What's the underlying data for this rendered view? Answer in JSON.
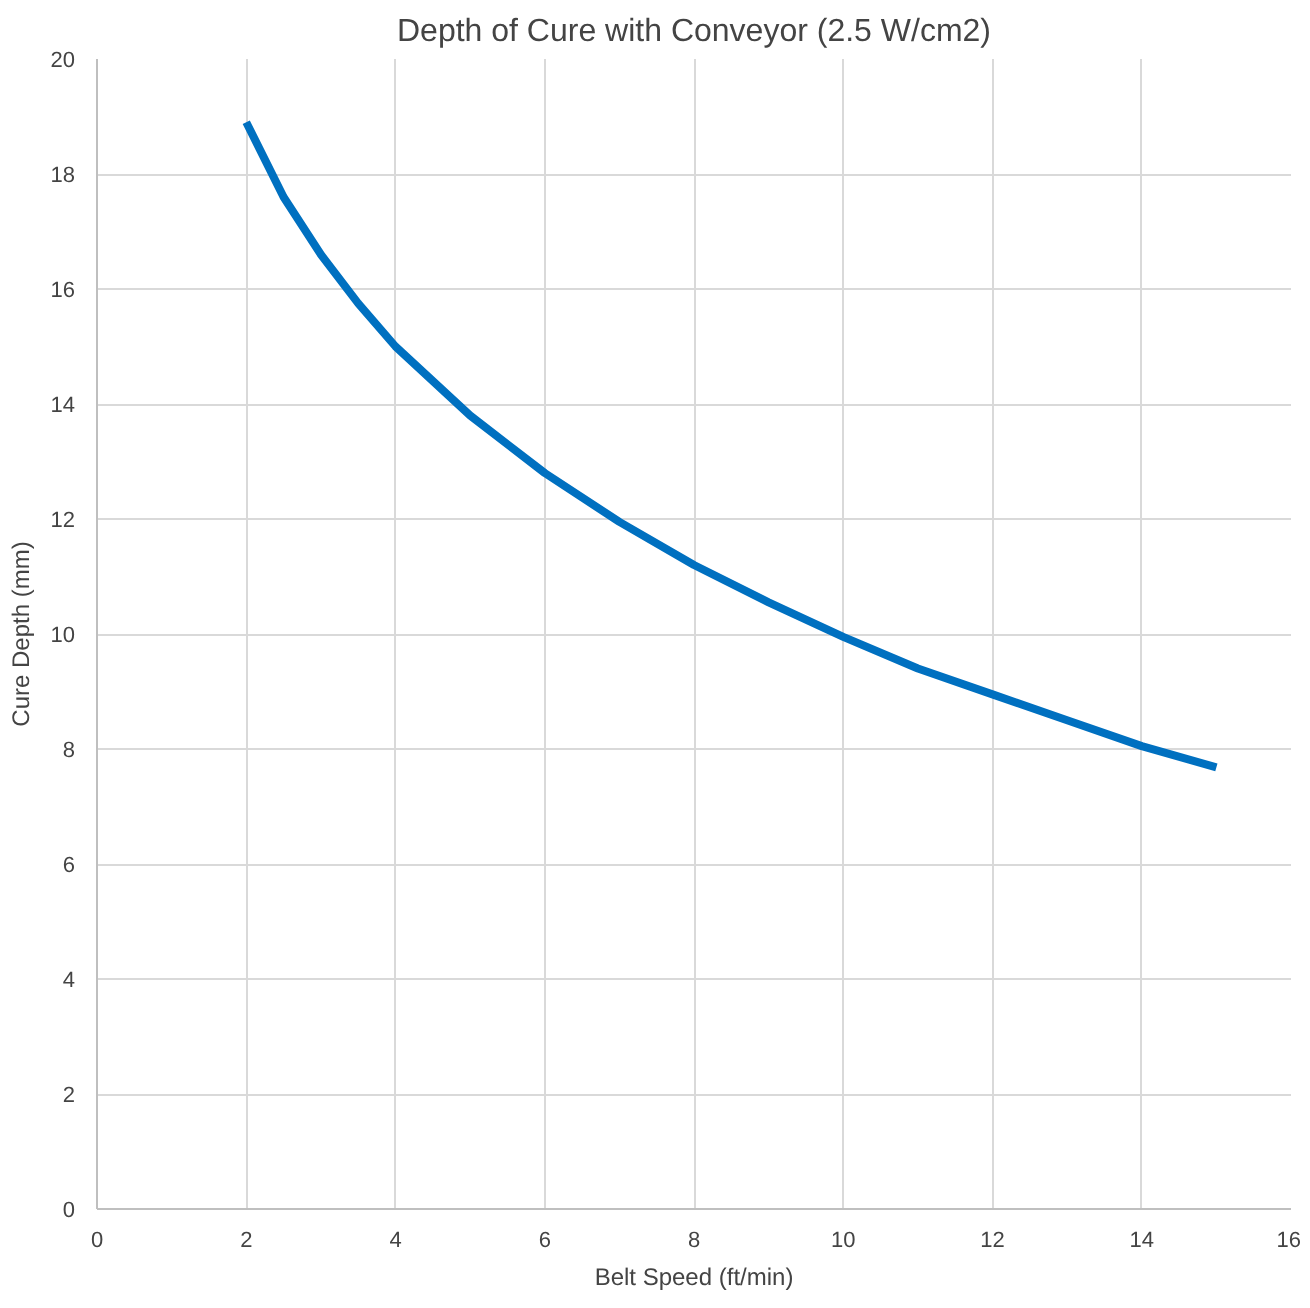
{
  "chart_data": {
    "type": "line",
    "title": "Depth of Cure with Conveyor (2.5 W/cm2)",
    "xlabel": "Belt Speed (ft/min)",
    "ylabel": "Cure Depth (mm)",
    "x": [
      2,
      2.5,
      3,
      3.5,
      4,
      5,
      6,
      7,
      8,
      9,
      10,
      11,
      12,
      13,
      14,
      15
    ],
    "series": [
      {
        "color": "#0070c0",
        "values": [
          18.9,
          17.6,
          16.6,
          15.75,
          15.0,
          13.8,
          12.8,
          11.95,
          11.2,
          10.55,
          9.95,
          9.4,
          8.95,
          8.5,
          8.05,
          7.68
        ]
      }
    ],
    "xlim": [
      0,
      16
    ],
    "xticks": [
      0,
      2,
      4,
      6,
      8,
      10,
      12,
      14,
      16
    ],
    "ylim": [
      0,
      20
    ],
    "yticks": [
      0,
      2,
      4,
      6,
      8,
      10,
      12,
      14,
      16,
      18,
      20
    ],
    "grid": true,
    "marker": "none",
    "line_style": "solid"
  }
}
